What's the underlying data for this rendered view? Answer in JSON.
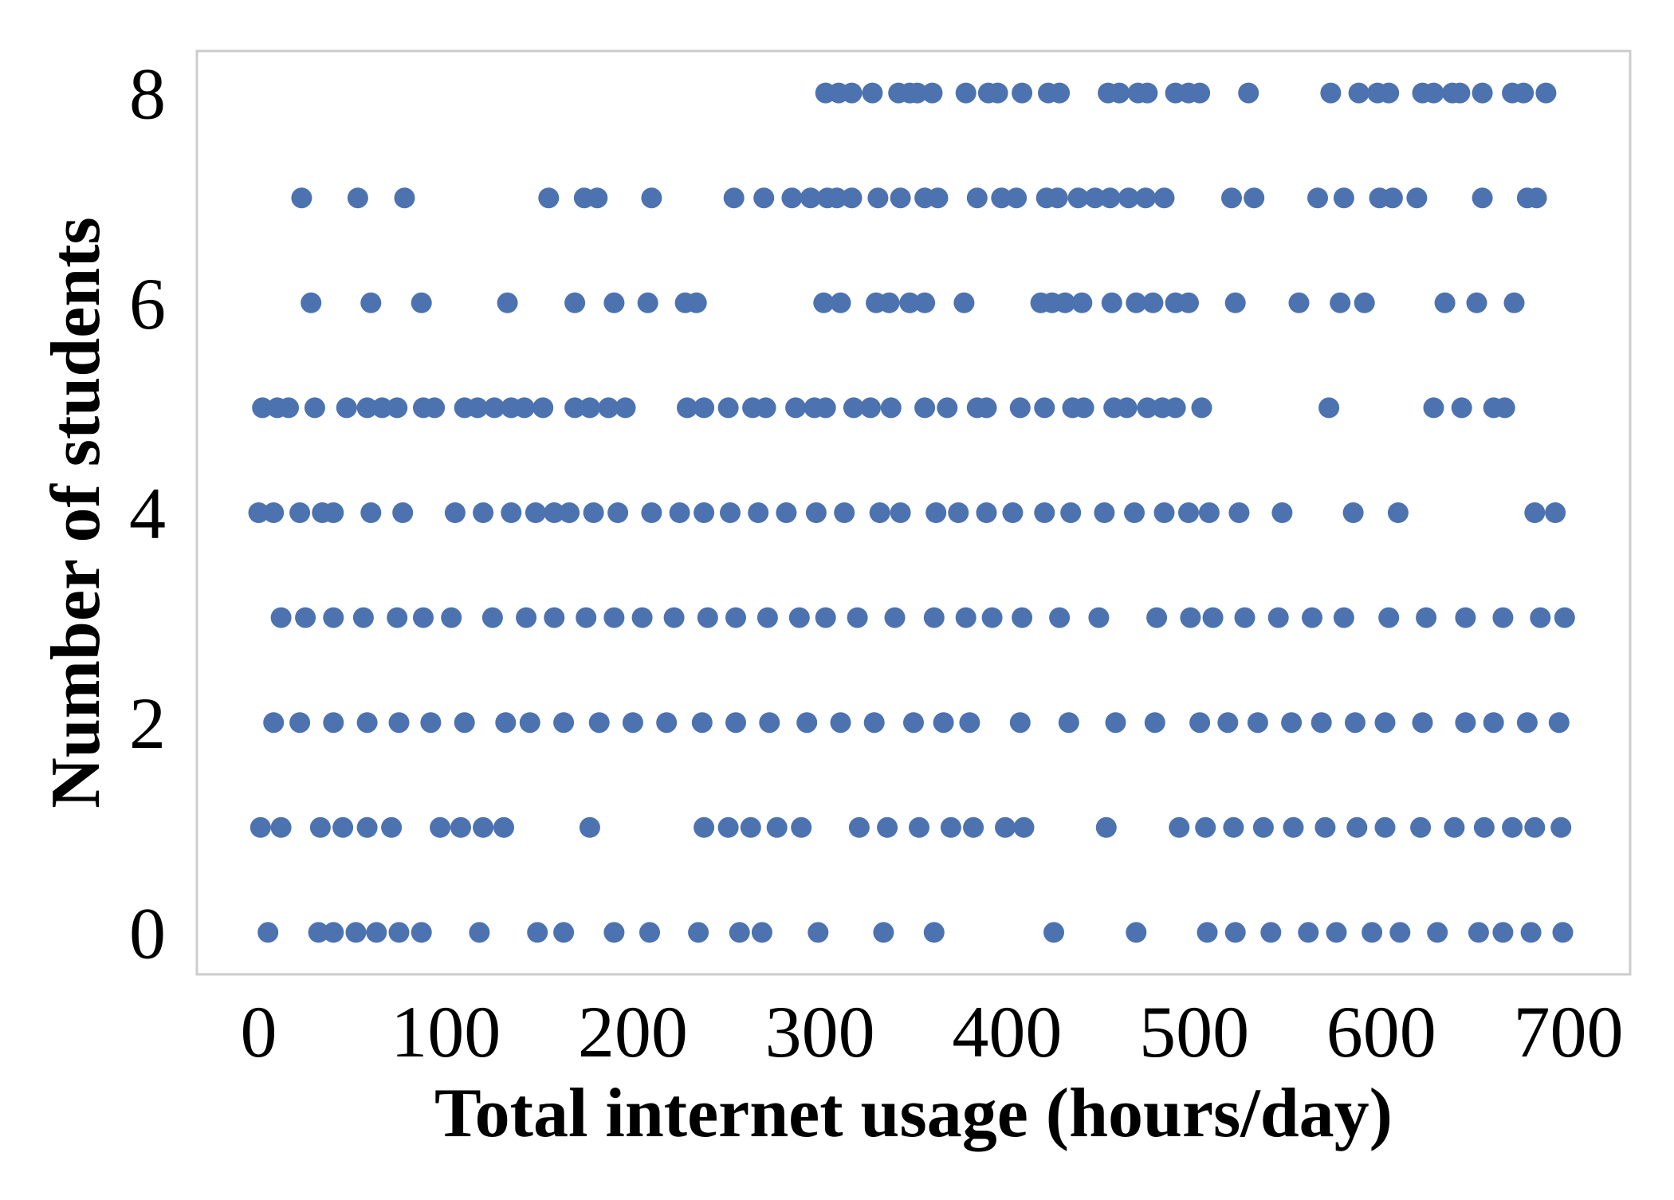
{
  "chart_data": {
    "type": "scatter",
    "title": "",
    "xlabel": "Total internet usage (hours/day)",
    "ylabel": "Number of students",
    "xlim": [
      -33,
      733
    ],
    "ylim": [
      -0.4,
      8.4
    ],
    "xticks": [
      0,
      100,
      200,
      300,
      400,
      500,
      600,
      700
    ],
    "yticks": [
      0,
      2,
      4,
      6,
      8
    ],
    "grid": false,
    "legend": "none",
    "marker_color": "#4c72b0",
    "frame_color": "#cccccc",
    "series": [
      {
        "points": [
          [
            303,
            8
          ],
          [
            310,
            8
          ],
          [
            317,
            8
          ],
          [
            328,
            8
          ],
          [
            342,
            8
          ],
          [
            348,
            8
          ],
          [
            352,
            8
          ],
          [
            360,
            8
          ],
          [
            378,
            8
          ],
          [
            390,
            8
          ],
          [
            395,
            8
          ],
          [
            408,
            8
          ],
          [
            422,
            8
          ],
          [
            428,
            8
          ],
          [
            454,
            8
          ],
          [
            460,
            8
          ],
          [
            470,
            8
          ],
          [
            475,
            8
          ],
          [
            490,
            8
          ],
          [
            497,
            8
          ],
          [
            503,
            8
          ],
          [
            529,
            8
          ],
          [
            573,
            8
          ],
          [
            588,
            8
          ],
          [
            598,
            8
          ],
          [
            604,
            8
          ],
          [
            622,
            8
          ],
          [
            628,
            8
          ],
          [
            638,
            8
          ],
          [
            642,
            8
          ],
          [
            654,
            8
          ],
          [
            670,
            8
          ],
          [
            676,
            8
          ],
          [
            688,
            8
          ],
          [
            23,
            7
          ],
          [
            53,
            7
          ],
          [
            78,
            7
          ],
          [
            155,
            7
          ],
          [
            174,
            7
          ],
          [
            181,
            7
          ],
          [
            210,
            7
          ],
          [
            254,
            7
          ],
          [
            270,
            7
          ],
          [
            285,
            7
          ],
          [
            295,
            7
          ],
          [
            304,
            7
          ],
          [
            309,
            7
          ],
          [
            317,
            7
          ],
          [
            331,
            7
          ],
          [
            343,
            7
          ],
          [
            356,
            7
          ],
          [
            363,
            7
          ],
          [
            384,
            7
          ],
          [
            397,
            7
          ],
          [
            405,
            7
          ],
          [
            421,
            7
          ],
          [
            427,
            7
          ],
          [
            438,
            7
          ],
          [
            447,
            7
          ],
          [
            455,
            7
          ],
          [
            465,
            7
          ],
          [
            474,
            7
          ],
          [
            484,
            7
          ],
          [
            520,
            7
          ],
          [
            532,
            7
          ],
          [
            566,
            7
          ],
          [
            580,
            7
          ],
          [
            599,
            7
          ],
          [
            606,
            7
          ],
          [
            619,
            7
          ],
          [
            654,
            7
          ],
          [
            678,
            7
          ],
          [
            683,
            7
          ],
          [
            28,
            6
          ],
          [
            60,
            6
          ],
          [
            87,
            6
          ],
          [
            133,
            6
          ],
          [
            169,
            6
          ],
          [
            190,
            6
          ],
          [
            208,
            6
          ],
          [
            228,
            6
          ],
          [
            234,
            6
          ],
          [
            302,
            6
          ],
          [
            311,
            6
          ],
          [
            330,
            6
          ],
          [
            337,
            6
          ],
          [
            348,
            6
          ],
          [
            356,
            6
          ],
          [
            377,
            6
          ],
          [
            418,
            6
          ],
          [
            424,
            6
          ],
          [
            431,
            6
          ],
          [
            440,
            6
          ],
          [
            456,
            6
          ],
          [
            469,
            6
          ],
          [
            478,
            6
          ],
          [
            490,
            6
          ],
          [
            497,
            6
          ],
          [
            522,
            6
          ],
          [
            556,
            6
          ],
          [
            578,
            6
          ],
          [
            591,
            6
          ],
          [
            634,
            6
          ],
          [
            651,
            6
          ],
          [
            671,
            6
          ],
          [
            2,
            5
          ],
          [
            10,
            5
          ],
          [
            16,
            5
          ],
          [
            30,
            5
          ],
          [
            47,
            5
          ],
          [
            58,
            5
          ],
          [
            66,
            5
          ],
          [
            74,
            5
          ],
          [
            88,
            5
          ],
          [
            94,
            5
          ],
          [
            110,
            5
          ],
          [
            117,
            5
          ],
          [
            126,
            5
          ],
          [
            135,
            5
          ],
          [
            142,
            5
          ],
          [
            152,
            5
          ],
          [
            169,
            5
          ],
          [
            177,
            5
          ],
          [
            187,
            5
          ],
          [
            196,
            5
          ],
          [
            229,
            5
          ],
          [
            238,
            5
          ],
          [
            251,
            5
          ],
          [
            264,
            5
          ],
          [
            271,
            5
          ],
          [
            287,
            5
          ],
          [
            297,
            5
          ],
          [
            303,
            5
          ],
          [
            318,
            5
          ],
          [
            327,
            5
          ],
          [
            338,
            5
          ],
          [
            356,
            5
          ],
          [
            368,
            5
          ],
          [
            384,
            5
          ],
          [
            389,
            5
          ],
          [
            407,
            5
          ],
          [
            420,
            5
          ],
          [
            435,
            5
          ],
          [
            441,
            5
          ],
          [
            457,
            5
          ],
          [
            464,
            5
          ],
          [
            475,
            5
          ],
          [
            483,
            5
          ],
          [
            490,
            5
          ],
          [
            504,
            5
          ],
          [
            572,
            5
          ],
          [
            628,
            5
          ],
          [
            643,
            5
          ],
          [
            660,
            5
          ],
          [
            666,
            5
          ],
          [
            0,
            4
          ],
          [
            8,
            4
          ],
          [
            22,
            4
          ],
          [
            34,
            4
          ],
          [
            40,
            4
          ],
          [
            60,
            4
          ],
          [
            77,
            4
          ],
          [
            105,
            4
          ],
          [
            120,
            4
          ],
          [
            135,
            4
          ],
          [
            148,
            4
          ],
          [
            158,
            4
          ],
          [
            166,
            4
          ],
          [
            179,
            4
          ],
          [
            192,
            4
          ],
          [
            210,
            4
          ],
          [
            225,
            4
          ],
          [
            238,
            4
          ],
          [
            252,
            4
          ],
          [
            267,
            4
          ],
          [
            282,
            4
          ],
          [
            298,
            4
          ],
          [
            313,
            4
          ],
          [
            332,
            4
          ],
          [
            343,
            4
          ],
          [
            362,
            4
          ],
          [
            374,
            4
          ],
          [
            389,
            4
          ],
          [
            403,
            4
          ],
          [
            420,
            4
          ],
          [
            434,
            4
          ],
          [
            452,
            4
          ],
          [
            468,
            4
          ],
          [
            484,
            4
          ],
          [
            497,
            4
          ],
          [
            508,
            4
          ],
          [
            524,
            4
          ],
          [
            547,
            4
          ],
          [
            585,
            4
          ],
          [
            609,
            4
          ],
          [
            682,
            4
          ],
          [
            693,
            4
          ],
          [
            12,
            3
          ],
          [
            25,
            3
          ],
          [
            40,
            3
          ],
          [
            56,
            3
          ],
          [
            74,
            3
          ],
          [
            88,
            3
          ],
          [
            103,
            3
          ],
          [
            125,
            3
          ],
          [
            143,
            3
          ],
          [
            158,
            3
          ],
          [
            175,
            3
          ],
          [
            190,
            3
          ],
          [
            205,
            3
          ],
          [
            222,
            3
          ],
          [
            240,
            3
          ],
          [
            255,
            3
          ],
          [
            272,
            3
          ],
          [
            289,
            3
          ],
          [
            303,
            3
          ],
          [
            320,
            3
          ],
          [
            340,
            3
          ],
          [
            361,
            3
          ],
          [
            378,
            3
          ],
          [
            392,
            3
          ],
          [
            408,
            3
          ],
          [
            428,
            3
          ],
          [
            449,
            3
          ],
          [
            480,
            3
          ],
          [
            498,
            3
          ],
          [
            510,
            3
          ],
          [
            527,
            3
          ],
          [
            545,
            3
          ],
          [
            563,
            3
          ],
          [
            580,
            3
          ],
          [
            604,
            3
          ],
          [
            624,
            3
          ],
          [
            645,
            3
          ],
          [
            665,
            3
          ],
          [
            685,
            3
          ],
          [
            698,
            3
          ],
          [
            8,
            2
          ],
          [
            22,
            2
          ],
          [
            40,
            2
          ],
          [
            58,
            2
          ],
          [
            75,
            2
          ],
          [
            92,
            2
          ],
          [
            110,
            2
          ],
          [
            132,
            2
          ],
          [
            145,
            2
          ],
          [
            163,
            2
          ],
          [
            182,
            2
          ],
          [
            200,
            2
          ],
          [
            218,
            2
          ],
          [
            237,
            2
          ],
          [
            255,
            2
          ],
          [
            273,
            2
          ],
          [
            293,
            2
          ],
          [
            311,
            2
          ],
          [
            329,
            2
          ],
          [
            350,
            2
          ],
          [
            366,
            2
          ],
          [
            380,
            2
          ],
          [
            407,
            2
          ],
          [
            433,
            2
          ],
          [
            458,
            2
          ],
          [
            479,
            2
          ],
          [
            503,
            2
          ],
          [
            518,
            2
          ],
          [
            534,
            2
          ],
          [
            552,
            2
          ],
          [
            568,
            2
          ],
          [
            586,
            2
          ],
          [
            602,
            2
          ],
          [
            622,
            2
          ],
          [
            645,
            2
          ],
          [
            660,
            2
          ],
          [
            678,
            2
          ],
          [
            695,
            2
          ],
          [
            1,
            1
          ],
          [
            12,
            1
          ],
          [
            33,
            1
          ],
          [
            45,
            1
          ],
          [
            58,
            1
          ],
          [
            71,
            1
          ],
          [
            97,
            1
          ],
          [
            108,
            1
          ],
          [
            120,
            1
          ],
          [
            131,
            1
          ],
          [
            177,
            1
          ],
          [
            238,
            1
          ],
          [
            251,
            1
          ],
          [
            263,
            1
          ],
          [
            277,
            1
          ],
          [
            290,
            1
          ],
          [
            321,
            1
          ],
          [
            336,
            1
          ],
          [
            353,
            1
          ],
          [
            370,
            1
          ],
          [
            382,
            1
          ],
          [
            399,
            1
          ],
          [
            409,
            1
          ],
          [
            453,
            1
          ],
          [
            492,
            1
          ],
          [
            506,
            1
          ],
          [
            521,
            1
          ],
          [
            537,
            1
          ],
          [
            553,
            1
          ],
          [
            570,
            1
          ],
          [
            587,
            1
          ],
          [
            602,
            1
          ],
          [
            621,
            1
          ],
          [
            639,
            1
          ],
          [
            655,
            1
          ],
          [
            670,
            1
          ],
          [
            682,
            1
          ],
          [
            696,
            1
          ],
          [
            5,
            0
          ],
          [
            32,
            0
          ],
          [
            40,
            0
          ],
          [
            52,
            0
          ],
          [
            63,
            0
          ],
          [
            75,
            0
          ],
          [
            87,
            0
          ],
          [
            118,
            0
          ],
          [
            149,
            0
          ],
          [
            163,
            0
          ],
          [
            190,
            0
          ],
          [
            209,
            0
          ],
          [
            235,
            0
          ],
          [
            257,
            0
          ],
          [
            269,
            0
          ],
          [
            299,
            0
          ],
          [
            334,
            0
          ],
          [
            361,
            0
          ],
          [
            425,
            0
          ],
          [
            469,
            0
          ],
          [
            507,
            0
          ],
          [
            522,
            0
          ],
          [
            541,
            0
          ],
          [
            561,
            0
          ],
          [
            576,
            0
          ],
          [
            595,
            0
          ],
          [
            610,
            0
          ],
          [
            630,
            0
          ],
          [
            652,
            0
          ],
          [
            665,
            0
          ],
          [
            680,
            0
          ],
          [
            697,
            0
          ]
        ]
      }
    ]
  }
}
